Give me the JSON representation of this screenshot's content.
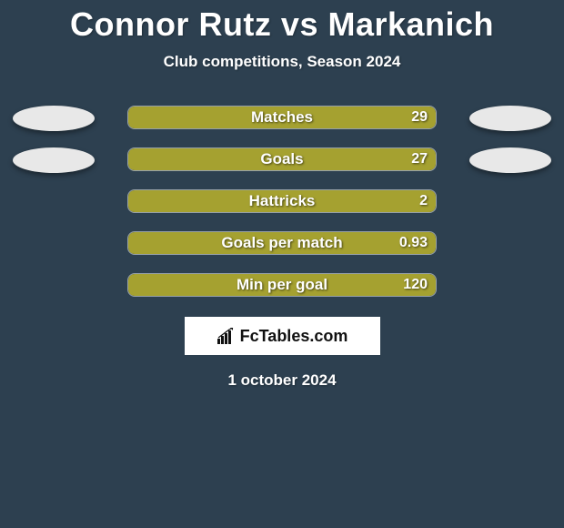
{
  "header": {
    "title": "Connor Rutz vs Markanich",
    "subtitle": "Club competitions, Season 2024"
  },
  "chart": {
    "type": "bar-comparison",
    "bar_track_width": 340,
    "bar_color": "#a5a130",
    "track_border_color": "rgba(255,255,255,0.5)",
    "background_color": "#2d4050",
    "label_fontsize": 17,
    "value_fontsize": 16,
    "text_color": "#ffffff"
  },
  "avatars": {
    "left": {
      "color": "#e8e8e8",
      "rows": [
        0,
        1
      ]
    },
    "right": {
      "color": "#e8e8e8",
      "rows": [
        0,
        1
      ]
    }
  },
  "stats": [
    {
      "label": "Matches",
      "value": "29",
      "fill_pct": 100
    },
    {
      "label": "Goals",
      "value": "27",
      "fill_pct": 100
    },
    {
      "label": "Hattricks",
      "value": "2",
      "fill_pct": 100
    },
    {
      "label": "Goals per match",
      "value": "0.93",
      "fill_pct": 100
    },
    {
      "label": "Min per goal",
      "value": "120",
      "fill_pct": 100
    }
  ],
  "footer": {
    "logo_text": "FcTables.com",
    "date": "1 october 2024"
  }
}
